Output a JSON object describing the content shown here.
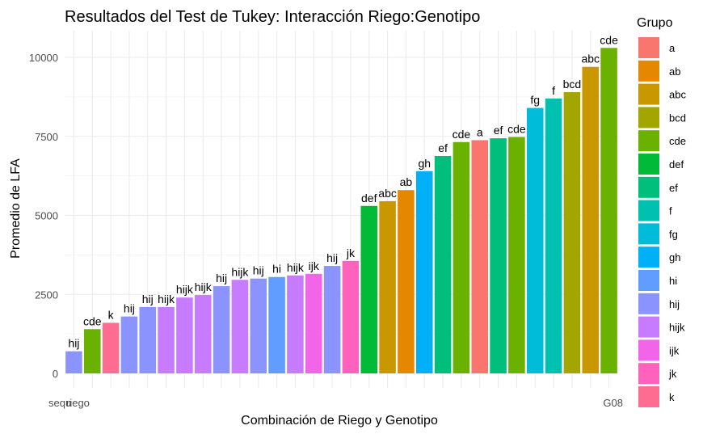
{
  "chart_data": {
    "type": "bar",
    "title": "Resultados del Test de Tukey: Interacción Riego:Genotipo",
    "xlabel": "Combinación de Riego y Genotipo",
    "ylabel": "Promedio de LFA",
    "ylim": [
      0,
      10800
    ],
    "yticks": [
      0,
      2500,
      5000,
      7500,
      10000
    ],
    "grid": true,
    "legend": {
      "title": "Grupo",
      "position": "right",
      "items": [
        {
          "label": "a",
          "color": "#F8766D"
        },
        {
          "label": "ab",
          "color": "#E58700"
        },
        {
          "label": "abc",
          "color": "#C99800"
        },
        {
          "label": "bcd",
          "color": "#A3A500"
        },
        {
          "label": "cde",
          "color": "#6BB100"
        },
        {
          "label": "def",
          "color": "#00BA38"
        },
        {
          "label": "ef",
          "color": "#00BF7D"
        },
        {
          "label": "f",
          "color": "#00C0AF"
        },
        {
          "label": "fg",
          "color": "#00BCD8"
        },
        {
          "label": "gh",
          "color": "#00B0F6"
        },
        {
          "label": "hi",
          "color": "#619CFF"
        },
        {
          "label": "hij",
          "color": "#8B93FF"
        },
        {
          "label": "hijk",
          "color": "#C77CFF"
        },
        {
          "label": "ijk",
          "color": "#F265E9"
        },
        {
          "label": "jk",
          "color": "#FF62BC"
        },
        {
          "label": "k",
          "color": "#FF6C91"
        }
      ]
    },
    "bars": [
      {
        "value": 700,
        "group": "hij"
      },
      {
        "value": 1400,
        "group": "cde"
      },
      {
        "value": 1600,
        "group": "k"
      },
      {
        "value": 1800,
        "group": "hij"
      },
      {
        "value": 2100,
        "group": "hij"
      },
      {
        "value": 2100,
        "group": "hijk"
      },
      {
        "value": 2400,
        "group": "hijk"
      },
      {
        "value": 2480,
        "group": "hijk"
      },
      {
        "value": 2760,
        "group": "hij"
      },
      {
        "value": 2960,
        "group": "hijk"
      },
      {
        "value": 3000,
        "group": "hij"
      },
      {
        "value": 3050,
        "group": "hi"
      },
      {
        "value": 3100,
        "group": "hijk"
      },
      {
        "value": 3150,
        "group": "ijk"
      },
      {
        "value": 3400,
        "group": "hij"
      },
      {
        "value": 3560,
        "group": "jk"
      },
      {
        "value": 5300,
        "group": "def"
      },
      {
        "value": 5450,
        "group": "abc"
      },
      {
        "value": 5800,
        "group": "ab"
      },
      {
        "value": 6400,
        "group": "gh"
      },
      {
        "value": 6880,
        "group": "ef"
      },
      {
        "value": 7320,
        "group": "cde"
      },
      {
        "value": 7380,
        "group": "a"
      },
      {
        "value": 7440,
        "group": "ef"
      },
      {
        "value": 7480,
        "group": "cde"
      },
      {
        "value": 8400,
        "group": "fg"
      },
      {
        "value": 8700,
        "group": "f"
      },
      {
        "value": 8900,
        "group": "bcd"
      },
      {
        "value": 9700,
        "group": "abc"
      },
      {
        "value": 10300,
        "group": "cde"
      }
    ],
    "x_tick_labels_visible": [
      "sequ",
      "riego",
      "G08"
    ]
  }
}
